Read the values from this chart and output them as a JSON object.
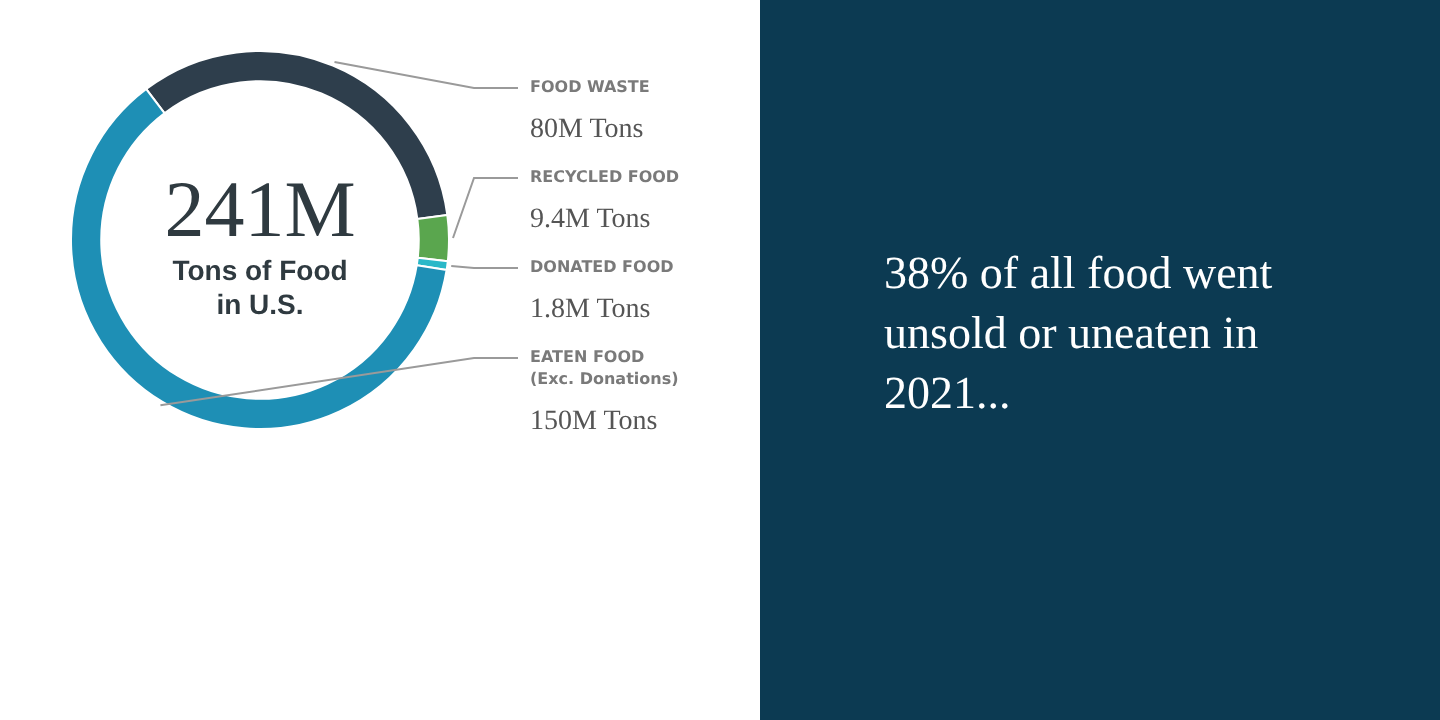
{
  "chart_data": {
    "type": "donut",
    "categories": [
      "FOOD WASTE",
      "RECYCLED FOOD",
      "DONATED FOOD",
      "EATEN FOOD\n(Exc. Donations)"
    ],
    "values": [
      80,
      9.4,
      1.8,
      150
    ],
    "value_labels": [
      "80M Tons",
      "9.4M Tons",
      "1.8M Tons",
      "150M Tons"
    ],
    "colors": [
      "#2e3e4c",
      "#5aa64e",
      "#2ab8c8",
      "#1e8fb5"
    ],
    "annotations": [
      "241M",
      "Tons of Food\nin U.S.",
      "38% of all food went unsold or uneaten in 2021..."
    ]
  }
}
